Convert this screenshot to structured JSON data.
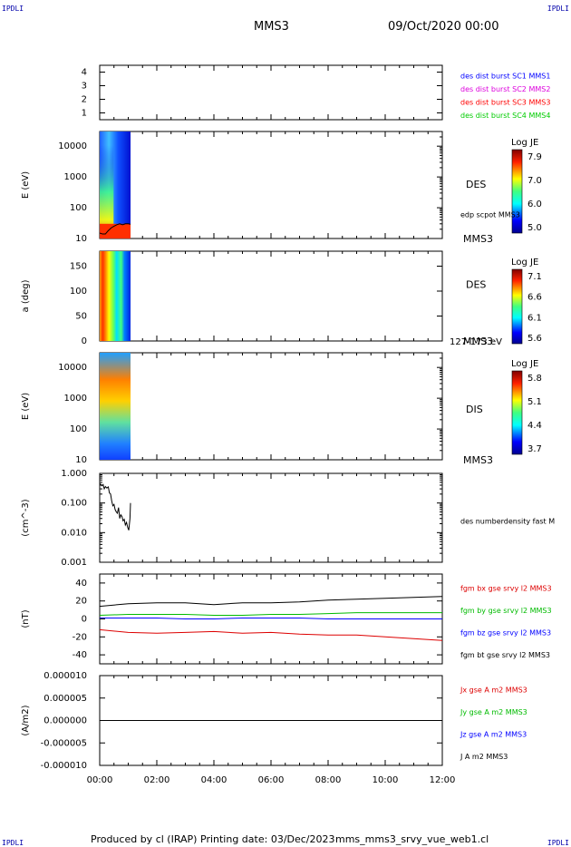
{
  "corners": {
    "tl": "IPDLI",
    "tr": "IPDLI",
    "bl": "IPDLI",
    "br": "IPDLI"
  },
  "header": {
    "mission": "MMS3",
    "date": "09/Oct/2020 00:00"
  },
  "footer": {
    "produced": "Produced by cl (IRAP)",
    "printing": "Printing date: 03/Dec/2023",
    "file": "mms_mms3_srvy_vue_web1.cl"
  },
  "colors": {
    "mms1": "#0000ff",
    "mms2": "#dd00dd",
    "mms3": "#ff0000",
    "mms4": "#00cc00",
    "bx": "#dd0000",
    "by": "#00bb00",
    "bz": "#0000ff",
    "bt": "#000000"
  },
  "time_axis": {
    "ticks": [
      "00:00",
      "02:00",
      "04:00",
      "06:00",
      "08:00",
      "10:00",
      "12:00"
    ],
    "range_hours": [
      0,
      12
    ]
  },
  "chart_data": [
    {
      "type": "table",
      "id": "burst",
      "ylim": [
        0.5,
        4.5
      ],
      "yticks": [
        "1",
        "2",
        "3",
        "4"
      ],
      "legend": [
        {
          "label": "des dist burst SC1 MMS1",
          "color": "#0000ff"
        },
        {
          "label": "des dist burst SC2 MMS2",
          "color": "#dd00dd"
        },
        {
          "label": "des dist burst SC3 MMS3",
          "color": "#ff0000"
        },
        {
          "label": "des dist burst SC4 MMS4",
          "color": "#00cc00"
        }
      ]
    },
    {
      "type": "heatmap",
      "id": "des_e",
      "ylabel": "E (eV)",
      "yscale": "log",
      "ylim": [
        10,
        30000
      ],
      "yticks": [
        "10",
        "100",
        "1000",
        "10000"
      ],
      "side_label": "DES",
      "series_label": "edp scpot MMS3",
      "instrument": "MMS3",
      "colorbar": {
        "title": "Log JE",
        "ticks": [
          "7.9",
          "7.0",
          "6.0",
          "5.0"
        ]
      },
      "data_span_hours": [
        0,
        1.08
      ]
    },
    {
      "type": "heatmap",
      "id": "des_pa",
      "ylabel": "a (deg)",
      "ylim": [
        0,
        180
      ],
      "yticks": [
        "0",
        "50",
        "100",
        "150"
      ],
      "side_label": "DES",
      "instrument": "MMS3",
      "energy_range": "127-173 eV",
      "colorbar": {
        "title": "Log JE",
        "ticks": [
          "7.1",
          "6.6",
          "6.1",
          "5.6"
        ]
      },
      "data_span_hours": [
        0,
        1.08
      ]
    },
    {
      "type": "heatmap",
      "id": "dis_e",
      "ylabel": "E (eV)",
      "yscale": "log",
      "ylim": [
        10,
        30000
      ],
      "yticks": [
        "10",
        "100",
        "1000",
        "10000"
      ],
      "side_label": "DIS",
      "instrument": "MMS3",
      "colorbar": {
        "title": "Log JE",
        "ticks": [
          "5.8",
          "5.1",
          "4.4",
          "3.7"
        ]
      },
      "data_span_hours": [
        0,
        1.08
      ]
    },
    {
      "type": "line",
      "id": "density",
      "ylabel": "(cm^-3)",
      "yscale": "log",
      "ylim": [
        0.001,
        1.0
      ],
      "yticks": [
        "0.001",
        "0.010",
        "0.100",
        "1.000"
      ],
      "series": [
        {
          "name": "des numberdensity fast M",
          "color": "#000000",
          "x": [
            0.02,
            0.08,
            0.12,
            0.16,
            0.2,
            0.25,
            0.3,
            0.34,
            0.38,
            0.42,
            0.46,
            0.5,
            0.54,
            0.58,
            0.62,
            0.66,
            0.7,
            0.74,
            0.78,
            0.82,
            0.86,
            0.9,
            0.94,
            0.98,
            1.02,
            1.06,
            1.08
          ],
          "y": [
            0.45,
            0.38,
            0.42,
            0.3,
            0.36,
            0.32,
            0.35,
            0.22,
            0.2,
            0.12,
            0.08,
            0.09,
            0.06,
            0.05,
            0.045,
            0.07,
            0.03,
            0.04,
            0.035,
            0.025,
            0.028,
            0.018,
            0.022,
            0.015,
            0.012,
            0.03,
            0.1
          ]
        }
      ]
    },
    {
      "type": "line",
      "id": "fgm",
      "ylabel": "(nT)",
      "ylim": [
        -50,
        50
      ],
      "yticks": [
        "-40",
        "-20",
        "0",
        "20",
        "40"
      ],
      "series": [
        {
          "name": "fgm bx gse srvy l2 MMS3",
          "color": "#dd0000",
          "x": [
            0,
            1,
            2,
            3,
            4,
            5,
            6,
            7,
            8,
            9,
            10,
            11,
            12
          ],
          "y": [
            -12,
            -15,
            -16,
            -15,
            -14,
            -16,
            -15,
            -17,
            -18,
            -18,
            -20,
            -22,
            -24
          ]
        },
        {
          "name": "fgm by gse srvy l2 MMS3",
          "color": "#00bb00",
          "x": [
            0,
            1,
            2,
            3,
            4,
            5,
            6,
            7,
            8,
            9,
            10,
            11,
            12
          ],
          "y": [
            4,
            5,
            5,
            5,
            4,
            4,
            5,
            5,
            6,
            7,
            7,
            7,
            7
          ]
        },
        {
          "name": "fgm bz gse srvy l2 MMS3",
          "color": "#0000ff",
          "x": [
            0,
            1,
            2,
            3,
            4,
            5,
            6,
            7,
            8,
            9,
            10,
            11,
            12
          ],
          "y": [
            1,
            1,
            1,
            0,
            0,
            1,
            1,
            1,
            0,
            0,
            0,
            0,
            0
          ]
        },
        {
          "name": "fgm bt gse srvy l2 MMS3",
          "color": "#000000",
          "x": [
            0,
            1,
            2,
            3,
            4,
            5,
            6,
            7,
            8,
            9,
            10,
            11,
            12
          ],
          "y": [
            14,
            17,
            18,
            18,
            16,
            18,
            18,
            19,
            21,
            22,
            23,
            24,
            25
          ]
        }
      ]
    },
    {
      "type": "line",
      "id": "current",
      "ylabel": "(A/m2)",
      "ylim": [
        -1e-05,
        1e-05
      ],
      "yticks": [
        "-0.000010",
        "-0.000005",
        "0.000000",
        "0.000005",
        "0.000010"
      ],
      "series": [
        {
          "name": "Jx gse A m2 MMS3",
          "color": "#dd0000",
          "x": [
            0,
            12
          ],
          "y": [
            0,
            0
          ]
        },
        {
          "name": "Jy gse A m2 MMS3",
          "color": "#00bb00",
          "x": [
            0,
            12
          ],
          "y": [
            0,
            0
          ]
        },
        {
          "name": "Jz gse A m2 MMS3",
          "color": "#0000ff",
          "x": [
            0,
            12
          ],
          "y": [
            0,
            0
          ]
        },
        {
          "name": "J A m2 MMS3",
          "color": "#000000",
          "x": [
            0,
            12
          ],
          "y": [
            0,
            0
          ]
        }
      ]
    }
  ]
}
